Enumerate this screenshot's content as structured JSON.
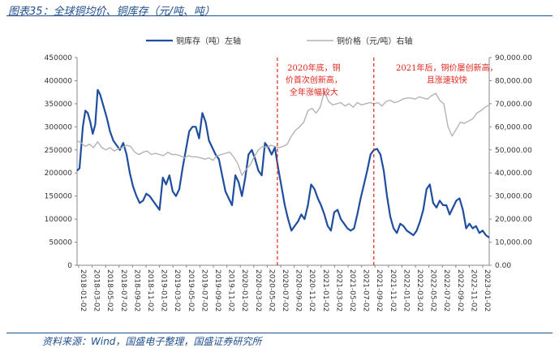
{
  "figure": {
    "title": "图表35：全球铜均价、铜库存（元/吨、吨）",
    "source": "资料来源：Wind，国盛电子整理，国盛证券研究所"
  },
  "chart_data": {
    "type": "line",
    "legend": {
      "position": "top",
      "inventory": "铜库存（吨）左轴",
      "price": "铜价格（元/吨）右轴"
    },
    "y_left": {
      "lim": [
        0,
        450000
      ],
      "ticks": [
        "0",
        "50000",
        "100000",
        "150000",
        "200000",
        "250000",
        "300000",
        "350000",
        "400000",
        "450000"
      ]
    },
    "y_right": {
      "lim": [
        0,
        90000
      ],
      "ticks": [
        "0.00",
        "10,000.00",
        "20,000.00",
        "30,000.00",
        "40,000.00",
        "50,000.00",
        "60,000.00",
        "70,000.00",
        "80,000.00",
        "90,000.00"
      ]
    },
    "x_ticks": [
      "2018-01-02",
      "2018-03-02",
      "2018-05-02",
      "2018-07-02",
      "2018-09-02",
      "2018-11-02",
      "2019-01-02",
      "2019-03-02",
      "2019-05-02",
      "2019-07-02",
      "2019-09-02",
      "2019-11-02",
      "2020-01-02",
      "2020-03-02",
      "2020-05-02",
      "2020-07-02",
      "2020-09-02",
      "2020-11-02",
      "2021-01-02",
      "2021-03-02",
      "2021-05-02",
      "2021-07-02",
      "2021-09-02",
      "2021-11-02",
      "2022-01-02",
      "2022-03-02",
      "2022-05-02",
      "2022-07-02",
      "2022-09-02",
      "2022-11-02",
      "2023-01-02"
    ],
    "x_range_months": [
      0,
      31
    ],
    "series": [
      {
        "key": "inventory",
        "axis": "left",
        "color": "#1f4e9e",
        "points": [
          [
            0,
            205000
          ],
          [
            0.3,
            210000
          ],
          [
            0.7,
            300000
          ],
          [
            1.0,
            335000
          ],
          [
            1.3,
            330000
          ],
          [
            1.6,
            310000
          ],
          [
            1.9,
            285000
          ],
          [
            2.2,
            305000
          ],
          [
            2.5,
            380000
          ],
          [
            2.8,
            370000
          ],
          [
            3.2,
            345000
          ],
          [
            3.6,
            320000
          ],
          [
            4.0,
            290000
          ],
          [
            4.4,
            270000
          ],
          [
            4.8,
            260000
          ],
          [
            5.2,
            250000
          ],
          [
            5.6,
            265000
          ],
          [
            6.0,
            240000
          ],
          [
            6.4,
            200000
          ],
          [
            6.8,
            170000
          ],
          [
            7.2,
            150000
          ],
          [
            7.6,
            135000
          ],
          [
            8.0,
            140000
          ],
          [
            8.4,
            155000
          ],
          [
            8.8,
            150000
          ],
          [
            9.2,
            140000
          ],
          [
            9.6,
            130000
          ],
          [
            10.0,
            120000
          ],
          [
            10.4,
            190000
          ],
          [
            10.8,
            175000
          ],
          [
            11.2,
            195000
          ],
          [
            11.6,
            160000
          ],
          [
            12.0,
            150000
          ],
          [
            12.4,
            165000
          ],
          [
            12.8,
            210000
          ],
          [
            13.2,
            250000
          ],
          [
            13.6,
            290000
          ],
          [
            14.0,
            300000
          ],
          [
            14.4,
            300000
          ],
          [
            14.8,
            275000
          ],
          [
            15.2,
            330000
          ],
          [
            15.6,
            310000
          ],
          [
            16.0,
            270000
          ],
          [
            16.4,
            255000
          ],
          [
            16.8,
            240000
          ],
          [
            17.2,
            230000
          ],
          [
            17.6,
            195000
          ],
          [
            18.0,
            160000
          ],
          [
            18.4,
            145000
          ],
          [
            18.8,
            130000
          ],
          [
            19.2,
            195000
          ],
          [
            19.6,
            180000
          ],
          [
            20.0,
            150000
          ],
          [
            20.4,
            190000
          ],
          [
            20.8,
            240000
          ],
          [
            21.2,
            250000
          ],
          [
            21.6,
            230000
          ],
          [
            22.0,
            205000
          ],
          [
            22.4,
            195000
          ],
          [
            22.8,
            265000
          ],
          [
            23.2,
            255000
          ],
          [
            23.6,
            240000
          ],
          [
            24.0,
            255000
          ],
          [
            24.4,
            210000
          ],
          [
            24.8,
            170000
          ],
          [
            25.2,
            130000
          ],
          [
            25.6,
            100000
          ],
          [
            26.0,
            75000
          ],
          [
            26.4,
            85000
          ],
          [
            26.8,
            95000
          ],
          [
            27.2,
            110000
          ],
          [
            27.6,
            100000
          ],
          [
            28.0,
            130000
          ],
          [
            28.4,
            175000
          ],
          [
            28.8,
            165000
          ],
          [
            29.2,
            145000
          ],
          [
            29.6,
            130000
          ],
          [
            30.0,
            110000
          ],
          [
            30.4,
            85000
          ],
          [
            30.8,
            75000
          ],
          [
            31.2,
            115000
          ],
          [
            31.6,
            120000
          ],
          [
            32.0,
            100000
          ],
          [
            32.4,
            90000
          ],
          [
            32.8,
            80000
          ],
          [
            33.2,
            75000
          ],
          [
            33.6,
            80000
          ],
          [
            34.0,
            110000
          ],
          [
            34.4,
            145000
          ],
          [
            34.8,
            175000
          ],
          [
            35.2,
            205000
          ],
          [
            35.6,
            240000
          ],
          [
            36.0,
            250000
          ],
          [
            36.4,
            252000
          ],
          [
            36.8,
            240000
          ],
          [
            37.2,
            205000
          ],
          [
            37.6,
            150000
          ],
          [
            38.0,
            105000
          ],
          [
            38.4,
            80000
          ],
          [
            38.8,
            70000
          ],
          [
            39.2,
            90000
          ],
          [
            39.6,
            85000
          ],
          [
            40.0,
            75000
          ],
          [
            40.4,
            70000
          ],
          [
            40.8,
            65000
          ],
          [
            41.2,
            75000
          ],
          [
            41.6,
            95000
          ],
          [
            42.0,
            120000
          ],
          [
            42.4,
            165000
          ],
          [
            42.8,
            175000
          ],
          [
            43.2,
            135000
          ],
          [
            43.6,
            125000
          ],
          [
            44.0,
            140000
          ],
          [
            44.4,
            130000
          ],
          [
            44.8,
            130000
          ],
          [
            45.2,
            110000
          ],
          [
            45.6,
            125000
          ],
          [
            46.0,
            140000
          ],
          [
            46.4,
            145000
          ],
          [
            46.8,
            120000
          ],
          [
            47.2,
            80000
          ],
          [
            47.6,
            90000
          ],
          [
            48.0,
            80000
          ],
          [
            48.4,
            85000
          ],
          [
            48.8,
            70000
          ],
          [
            49.2,
            75000
          ],
          [
            49.6,
            65000
          ],
          [
            50.0,
            60000
          ]
        ]
      },
      {
        "key": "price",
        "axis": "right",
        "color": "#b3b3b3",
        "points": [
          [
            0,
            54000
          ],
          [
            0.5,
            53000
          ],
          [
            1.0,
            51500
          ],
          [
            1.5,
            52500
          ],
          [
            2.0,
            51000
          ],
          [
            2.5,
            53500
          ],
          [
            3.0,
            51000
          ],
          [
            3.5,
            50000
          ],
          [
            4.0,
            51000
          ],
          [
            4.5,
            49500
          ],
          [
            5.0,
            50500
          ],
          [
            5.5,
            51000
          ],
          [
            6.0,
            52000
          ],
          [
            6.5,
            51500
          ],
          [
            7.0,
            49000
          ],
          [
            7.5,
            48000
          ],
          [
            8.0,
            49000
          ],
          [
            8.5,
            49500
          ],
          [
            9.0,
            48000
          ],
          [
            9.5,
            48500
          ],
          [
            10.0,
            48000
          ],
          [
            10.5,
            47500
          ],
          [
            11.0,
            49000
          ],
          [
            11.5,
            48000
          ],
          [
            12.0,
            48000
          ],
          [
            12.5,
            47500
          ],
          [
            13.0,
            46500
          ],
          [
            13.5,
            47500
          ],
          [
            14.0,
            47000
          ],
          [
            14.5,
            47000
          ],
          [
            15.0,
            46500
          ],
          [
            15.5,
            46000
          ],
          [
            16.0,
            46500
          ],
          [
            16.5,
            45500
          ],
          [
            17.0,
            47500
          ],
          [
            17.5,
            48000
          ],
          [
            18.0,
            48500
          ],
          [
            18.5,
            49000
          ],
          [
            19.0,
            47000
          ],
          [
            19.5,
            44000
          ],
          [
            20.0,
            39000
          ],
          [
            20.5,
            41500
          ],
          [
            21.0,
            43500
          ],
          [
            21.5,
            47000
          ],
          [
            22.0,
            50000
          ],
          [
            22.5,
            51500
          ],
          [
            23.0,
            51000
          ],
          [
            23.5,
            52000
          ],
          [
            24.0,
            51500
          ],
          [
            24.5,
            51000
          ],
          [
            25.0,
            51500
          ],
          [
            25.5,
            52500
          ],
          [
            26.0,
            56000
          ],
          [
            26.5,
            58500
          ],
          [
            27.0,
            60000
          ],
          [
            27.5,
            62000
          ],
          [
            28.0,
            67000
          ],
          [
            28.5,
            68000
          ],
          [
            29.0,
            66000
          ],
          [
            29.5,
            68500
          ],
          [
            30.0,
            75500
          ],
          [
            30.5,
            71000
          ],
          [
            31.0,
            69500
          ],
          [
            31.5,
            70000
          ],
          [
            32.0,
            70500
          ],
          [
            32.5,
            69000
          ],
          [
            33.0,
            70000
          ],
          [
            33.5,
            68500
          ],
          [
            34.0,
            70500
          ],
          [
            34.5,
            69500
          ],
          [
            35.0,
            70000
          ],
          [
            35.5,
            70500
          ],
          [
            36.0,
            70000
          ],
          [
            36.5,
            70500
          ],
          [
            37.0,
            69000
          ],
          [
            37.5,
            71000
          ],
          [
            38.0,
            71500
          ],
          [
            38.5,
            70500
          ],
          [
            39.0,
            71000
          ],
          [
            39.5,
            72000
          ],
          [
            40.0,
            72500
          ],
          [
            40.5,
            72500
          ],
          [
            41.0,
            72000
          ],
          [
            41.5,
            73000
          ],
          [
            42.0,
            72500
          ],
          [
            42.5,
            72000
          ],
          [
            43.0,
            73500
          ],
          [
            43.5,
            74500
          ],
          [
            44.0,
            71500
          ],
          [
            44.5,
            70000
          ],
          [
            45.0,
            60000
          ],
          [
            45.5,
            56000
          ],
          [
            46.0,
            59000
          ],
          [
            46.5,
            62000
          ],
          [
            47.0,
            61500
          ],
          [
            47.5,
            62500
          ],
          [
            48.0,
            63500
          ],
          [
            48.5,
            66000
          ],
          [
            49.0,
            67000
          ],
          [
            49.5,
            68500
          ],
          [
            50.0,
            69500
          ]
        ]
      }
    ],
    "annotations": [
      {
        "x_month": 24.3,
        "lines": [
          "2020年底，铜",
          "价首次创新高，",
          "全年涨幅较大"
        ]
      },
      {
        "x_month": 36.0,
        "lines": [
          "2021年后，铜价屡创新高，",
          "且涨速较快"
        ]
      }
    ],
    "vlines_month": [
      24.3,
      36.0
    ]
  }
}
